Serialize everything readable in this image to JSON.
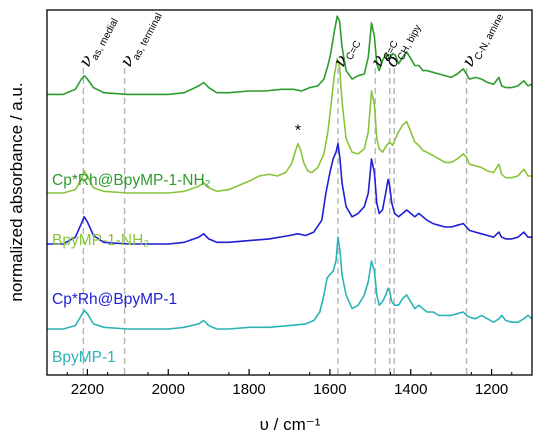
{
  "chart_data": {
    "type": "line",
    "xlabel": "υ / cm⁻¹",
    "ylabel": "normalized absorbance / a.u.",
    "xlim": [
      2300,
      1100
    ],
    "x_reversed": true,
    "y_ticks_shown": false,
    "x_ticks": [
      2200,
      2000,
      1800,
      1600,
      1400,
      1200
    ],
    "grid": false,
    "peak_markers": [
      {
        "x": 2210,
        "symbol": "ν",
        "subscript": "as, medial"
      },
      {
        "x": 2108,
        "symbol": "ν",
        "subscript": "as, terminal"
      },
      {
        "x": 1580,
        "symbol": "ν",
        "subscript": "C=C"
      },
      {
        "x": 1488,
        "symbol": "ν",
        "subscript": "C=C"
      },
      {
        "x": 1452,
        "symbol": "δ",
        "subscript": "CH, bipy"
      },
      {
        "x": 1441,
        "symbol": "",
        "subscript": ""
      },
      {
        "x": 1262,
        "symbol": "ν",
        "subscript": "C-N, amine"
      }
    ],
    "annotations": [
      {
        "text": "*",
        "x": 1679,
        "series": "BpyMP-1-NH₂"
      }
    ],
    "series": [
      {
        "name": "Cp*Rh@BpyMP-1-NH₂",
        "color": "#2e9b2e",
        "baseline": 0.79,
        "x": [
          2300,
          2260,
          2230,
          2215,
          2208,
          2200,
          2185,
          2160,
          2100,
          2050,
          2000,
          1960,
          1925,
          1912,
          1900,
          1880,
          1850,
          1800,
          1760,
          1720,
          1690,
          1670,
          1650,
          1630,
          1615,
          1605,
          1598,
          1590,
          1582,
          1576,
          1570,
          1560,
          1545,
          1530,
          1515,
          1505,
          1497,
          1490,
          1484,
          1478,
          1470,
          1460,
          1452,
          1445,
          1438,
          1430,
          1420,
          1410,
          1400,
          1390,
          1380,
          1370,
          1360,
          1345,
          1330,
          1315,
          1300,
          1285,
          1270,
          1262,
          1255,
          1240,
          1225,
          1210,
          1195,
          1182,
          1175,
          1165,
          1150,
          1135,
          1120,
          1110,
          1100
        ],
        "values": [
          0.79,
          0.79,
          0.805,
          0.835,
          0.845,
          0.835,
          0.81,
          0.795,
          0.79,
          0.79,
          0.79,
          0.795,
          0.815,
          0.825,
          0.81,
          0.795,
          0.795,
          0.8,
          0.8,
          0.805,
          0.805,
          0.8,
          0.81,
          0.815,
          0.835,
          0.875,
          0.91,
          0.97,
          1.02,
          1.005,
          0.93,
          0.86,
          0.835,
          0.845,
          0.85,
          0.9,
          1.0,
          0.96,
          0.88,
          0.86,
          0.89,
          0.91,
          0.895,
          0.91,
          0.905,
          0.88,
          0.9,
          0.915,
          0.895,
          0.875,
          0.875,
          0.86,
          0.86,
          0.855,
          0.85,
          0.845,
          0.84,
          0.85,
          0.865,
          0.85,
          0.835,
          0.84,
          0.835,
          0.825,
          0.82,
          0.84,
          0.815,
          0.81,
          0.81,
          0.815,
          0.83,
          0.815,
          0.82
        ]
      },
      {
        "name": "BpyMP-1-NH₂",
        "color": "#8ac43c",
        "baseline": 0.5,
        "x": [
          2300,
          2260,
          2230,
          2215,
          2208,
          2200,
          2185,
          2160,
          2100,
          2050,
          2000,
          1960,
          1925,
          1912,
          1900,
          1880,
          1850,
          1800,
          1775,
          1750,
          1730,
          1710,
          1695,
          1685,
          1679,
          1672,
          1665,
          1655,
          1645,
          1630,
          1615,
          1605,
          1598,
          1590,
          1582,
          1576,
          1570,
          1560,
          1545,
          1530,
          1515,
          1505,
          1497,
          1490,
          1484,
          1478,
          1470,
          1460,
          1452,
          1445,
          1438,
          1430,
          1420,
          1410,
          1400,
          1390,
          1380,
          1370,
          1360,
          1345,
          1330,
          1315,
          1300,
          1285,
          1270,
          1262,
          1255,
          1240,
          1225,
          1210,
          1195,
          1182,
          1175,
          1165,
          1150,
          1135,
          1120,
          1110,
          1100
        ],
        "values": [
          0.5,
          0.5,
          0.51,
          0.54,
          0.565,
          0.55,
          0.515,
          0.505,
          0.5,
          0.5,
          0.5,
          0.505,
          0.52,
          0.53,
          0.515,
          0.505,
          0.51,
          0.535,
          0.55,
          0.555,
          0.55,
          0.56,
          0.585,
          0.625,
          0.645,
          0.625,
          0.59,
          0.565,
          0.56,
          0.575,
          0.615,
          0.68,
          0.75,
          0.84,
          0.895,
          0.87,
          0.77,
          0.66,
          0.62,
          0.615,
          0.63,
          0.68,
          0.8,
          0.76,
          0.66,
          0.63,
          0.62,
          0.64,
          0.65,
          0.64,
          0.66,
          0.68,
          0.7,
          0.71,
          0.68,
          0.65,
          0.64,
          0.625,
          0.62,
          0.61,
          0.6,
          0.59,
          0.59,
          0.6,
          0.615,
          0.605,
          0.585,
          0.58,
          0.575,
          0.565,
          0.56,
          0.585,
          0.555,
          0.545,
          0.545,
          0.55,
          0.57,
          0.55,
          0.55
        ]
      },
      {
        "name": "Cp*Rh@BpyMP-1",
        "color": "#1f1fd6",
        "baseline": 0.35,
        "x": [
          2300,
          2260,
          2230,
          2215,
          2208,
          2200,
          2185,
          2160,
          2100,
          2050,
          2000,
          1960,
          1925,
          1912,
          1900,
          1880,
          1850,
          1800,
          1750,
          1700,
          1680,
          1660,
          1640,
          1620,
          1610,
          1600,
          1592,
          1585,
          1580,
          1575,
          1570,
          1560,
          1545,
          1530,
          1515,
          1505,
          1497,
          1490,
          1484,
          1478,
          1470,
          1462,
          1456,
          1452,
          1447,
          1440,
          1430,
          1420,
          1410,
          1400,
          1390,
          1380,
          1370,
          1360,
          1345,
          1330,
          1315,
          1300,
          1285,
          1270,
          1262,
          1255,
          1240,
          1225,
          1210,
          1195,
          1182,
          1175,
          1165,
          1150,
          1135,
          1120,
          1110,
          1100
        ],
        "values": [
          0.35,
          0.35,
          0.37,
          0.41,
          0.43,
          0.415,
          0.375,
          0.355,
          0.35,
          0.35,
          0.35,
          0.355,
          0.37,
          0.38,
          0.365,
          0.355,
          0.355,
          0.36,
          0.365,
          0.375,
          0.38,
          0.375,
          0.385,
          0.42,
          0.5,
          0.56,
          0.6,
          0.62,
          0.645,
          0.6,
          0.53,
          0.46,
          0.43,
          0.44,
          0.46,
          0.5,
          0.6,
          0.56,
          0.47,
          0.44,
          0.45,
          0.5,
          0.54,
          0.52,
          0.47,
          0.44,
          0.43,
          0.44,
          0.45,
          0.44,
          0.43,
          0.44,
          0.43,
          0.42,
          0.41,
          0.405,
          0.4,
          0.4,
          0.405,
          0.41,
          0.4,
          0.39,
          0.385,
          0.38,
          0.375,
          0.37,
          0.385,
          0.37,
          0.365,
          0.365,
          0.37,
          0.385,
          0.37,
          0.37
        ]
      },
      {
        "name": "BpyMP-1",
        "color": "#2bb3b8",
        "baseline": 0.1,
        "x": [
          2300,
          2260,
          2230,
          2215,
          2208,
          2200,
          2185,
          2160,
          2100,
          2050,
          2000,
          1960,
          1925,
          1912,
          1900,
          1880,
          1850,
          1800,
          1750,
          1700,
          1660,
          1640,
          1625,
          1615,
          1607,
          1600,
          1592,
          1585,
          1580,
          1575,
          1570,
          1560,
          1545,
          1530,
          1515,
          1505,
          1497,
          1490,
          1484,
          1478,
          1470,
          1462,
          1456,
          1452,
          1447,
          1440,
          1430,
          1420,
          1410,
          1400,
          1390,
          1380,
          1370,
          1360,
          1345,
          1330,
          1315,
          1300,
          1285,
          1270,
          1262,
          1255,
          1240,
          1225,
          1210,
          1195,
          1182,
          1175,
          1165,
          1150,
          1135,
          1120,
          1110,
          1100
        ],
        "values": [
          0.1,
          0.1,
          0.11,
          0.14,
          0.155,
          0.145,
          0.115,
          0.105,
          0.1,
          0.1,
          0.1,
          0.105,
          0.115,
          0.125,
          0.11,
          0.1,
          0.1,
          0.105,
          0.105,
          0.11,
          0.115,
          0.125,
          0.15,
          0.2,
          0.25,
          0.26,
          0.27,
          0.3,
          0.37,
          0.33,
          0.26,
          0.2,
          0.16,
          0.17,
          0.2,
          0.24,
          0.3,
          0.27,
          0.2,
          0.17,
          0.18,
          0.2,
          0.22,
          0.21,
          0.18,
          0.17,
          0.17,
          0.19,
          0.2,
          0.18,
          0.16,
          0.17,
          0.16,
          0.15,
          0.15,
          0.14,
          0.14,
          0.14,
          0.145,
          0.15,
          0.14,
          0.135,
          0.13,
          0.14,
          0.13,
          0.12,
          0.13,
          0.14,
          0.125,
          0.12,
          0.12,
          0.13,
          0.14,
          0.13
        ]
      }
    ],
    "series_label_positions": [
      "left-top",
      "left-top",
      "left-top",
      "left-top"
    ]
  }
}
